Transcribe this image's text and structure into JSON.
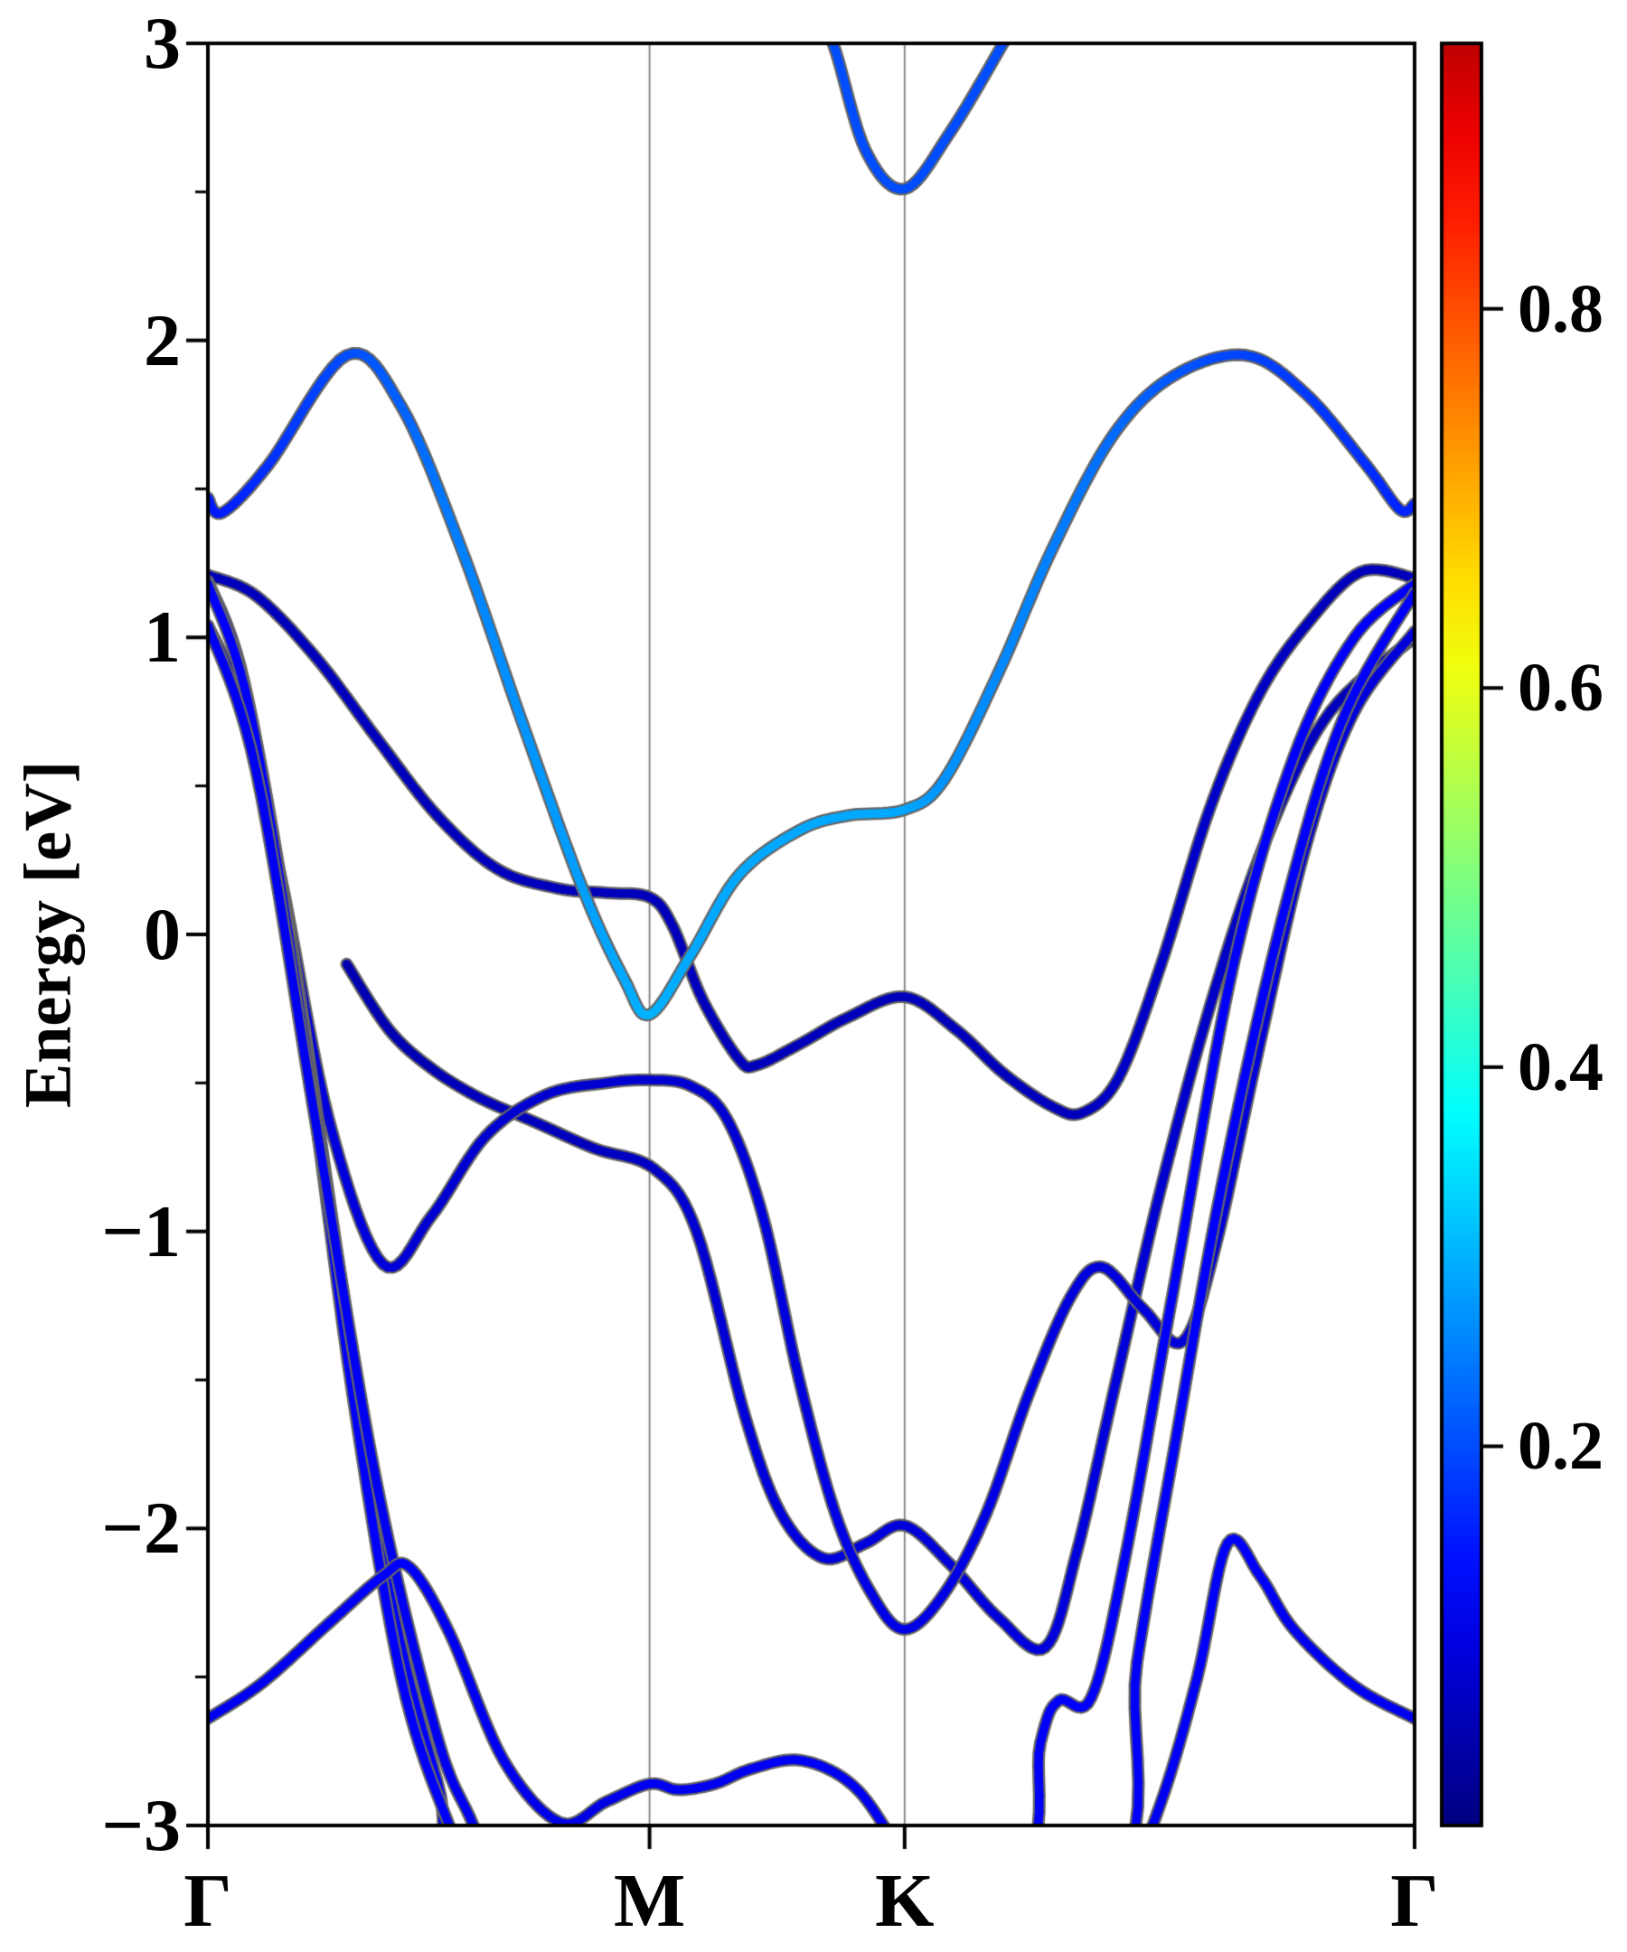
{
  "figure": {
    "background": "#ffffff",
    "ylabel": "Energy [eV]"
  },
  "chart_data": {
    "type": "line",
    "subtype": "band-structure",
    "title": "",
    "xlabel": "",
    "ylabel": "Energy [eV]",
    "x_tick_labels": [
      "Γ",
      "M",
      "K",
      "Γ"
    ],
    "x_tick_positions": [
      0,
      0.366,
      0.5774,
      1.0
    ],
    "ylim": [
      -3,
      3
    ],
    "y_major_ticks": [
      3,
      2,
      1,
      0,
      -1,
      -2,
      -3
    ],
    "y_tick_display": [
      "3",
      "2",
      "1",
      "0",
      "−1",
      "−2",
      "−3"
    ],
    "y_minor_step": 0.5,
    "grid": true,
    "grid_vertical_at": [
      0.366,
      0.5774
    ],
    "axis_color": "#000000",
    "grid_color": "#8a8a8a",
    "band_edge_color": "#666666",
    "legend": null,
    "colorbar": {
      "vmin": 0.0,
      "vmax": 0.94,
      "ticks": [
        0.8,
        0.6,
        0.4,
        0.2
      ],
      "tick_display": [
        "0.8",
        "0.6",
        "0.4",
        "0.2"
      ],
      "colormap": "jet",
      "colormap_stops": [
        [
          0.0,
          [
            0,
            0,
            127
          ]
        ],
        [
          0.125,
          [
            0,
            0,
            255
          ]
        ],
        [
          0.375,
          [
            0,
            255,
            255
          ]
        ],
        [
          0.625,
          [
            255,
            255,
            0
          ]
        ],
        [
          0.875,
          [
            255,
            0,
            0
          ]
        ],
        [
          1.0,
          [
            127,
            0,
            0
          ]
        ]
      ]
    },
    "bands": [
      {
        "name": "conduction-upper-parabola",
        "points": [
          [
            0.5,
            3.12,
            0.2
          ],
          [
            0.518,
            3.0,
            0.2
          ],
          [
            0.545,
            2.64,
            0.2
          ],
          [
            0.5774,
            2.51,
            0.2
          ],
          [
            0.615,
            2.7,
            0.2
          ],
          [
            0.659,
            3.0,
            0.2
          ],
          [
            0.675,
            3.12,
            0.2
          ]
        ]
      },
      {
        "name": "light-blue-band",
        "points": [
          [
            0.0,
            1.47,
            0.15
          ],
          [
            0.012,
            1.42,
            0.15
          ],
          [
            0.05,
            1.58,
            0.17
          ],
          [
            0.115,
            1.95,
            0.2
          ],
          [
            0.16,
            1.78,
            0.22
          ],
          [
            0.21,
            1.3,
            0.25
          ],
          [
            0.26,
            0.72,
            0.27
          ],
          [
            0.31,
            0.16,
            0.28
          ],
          [
            0.345,
            -0.15,
            0.29
          ],
          [
            0.366,
            -0.27,
            0.3
          ],
          [
            0.4,
            -0.07,
            0.29
          ],
          [
            0.44,
            0.2,
            0.29
          ],
          [
            0.49,
            0.35,
            0.29
          ],
          [
            0.53,
            0.4,
            0.29
          ],
          [
            0.5774,
            0.42,
            0.29
          ],
          [
            0.61,
            0.52,
            0.27
          ],
          [
            0.655,
            0.88,
            0.26
          ],
          [
            0.7,
            1.3,
            0.25
          ],
          [
            0.75,
            1.68,
            0.23
          ],
          [
            0.8,
            1.88,
            0.21
          ],
          [
            0.86,
            1.95,
            0.19
          ],
          [
            0.91,
            1.82,
            0.18
          ],
          [
            0.96,
            1.58,
            0.17
          ],
          [
            0.988,
            1.43,
            0.16
          ],
          [
            1.0,
            1.45,
            0.16
          ]
        ]
      },
      {
        "name": "navy-band-gentle",
        "points": [
          [
            0.0,
            1.21,
            0.06
          ],
          [
            0.04,
            1.14,
            0.06
          ],
          [
            0.09,
            0.93,
            0.06
          ],
          [
            0.14,
            0.66,
            0.06
          ],
          [
            0.19,
            0.4,
            0.06
          ],
          [
            0.24,
            0.22,
            0.06
          ],
          [
            0.29,
            0.155,
            0.06
          ],
          [
            0.33,
            0.14,
            0.06
          ],
          [
            0.366,
            0.125,
            0.06
          ],
          [
            0.385,
            0.03,
            0.06
          ],
          [
            0.41,
            -0.22,
            0.06
          ],
          [
            0.44,
            -0.42,
            0.06
          ],
          [
            0.455,
            -0.44,
            0.06
          ],
          [
            0.49,
            -0.37,
            0.06
          ],
          [
            0.53,
            -0.28,
            0.06
          ],
          [
            0.5774,
            -0.21,
            0.06
          ],
          [
            0.62,
            -0.32,
            0.06
          ],
          [
            0.66,
            -0.47,
            0.06
          ],
          [
            0.7,
            -0.58,
            0.06
          ],
          [
            0.725,
            -0.6,
            0.06
          ],
          [
            0.755,
            -0.48,
            0.07
          ],
          [
            0.79,
            -0.1,
            0.07
          ],
          [
            0.83,
            0.42,
            0.07
          ],
          [
            0.87,
            0.8,
            0.07
          ],
          [
            0.91,
            1.04,
            0.06
          ],
          [
            0.955,
            1.22,
            0.06
          ],
          [
            1.0,
            1.2,
            0.06
          ]
        ]
      },
      {
        "name": "navy-band-wiggle",
        "points": [
          [
            0.115,
            -0.1,
            0.05
          ],
          [
            0.15,
            -0.32,
            0.05
          ],
          [
            0.185,
            -0.45,
            0.05
          ],
          [
            0.225,
            -0.55,
            0.06
          ],
          [
            0.27,
            -0.63,
            0.06
          ],
          [
            0.32,
            -0.72,
            0.06
          ],
          [
            0.37,
            -0.79,
            0.07
          ],
          [
            0.405,
            -1.0,
            0.08
          ],
          [
            0.445,
            -1.62,
            0.09
          ],
          [
            0.475,
            -1.95,
            0.09
          ],
          [
            0.51,
            -2.1,
            0.09
          ],
          [
            0.545,
            -2.05,
            0.09
          ],
          [
            0.5774,
            -1.99,
            0.09
          ],
          [
            0.615,
            -2.12,
            0.09
          ],
          [
            0.655,
            -2.3,
            0.09
          ],
          [
            0.694,
            -2.4,
            0.09
          ],
          [
            0.72,
            -2.08,
            0.09
          ],
          [
            0.75,
            -1.55,
            0.09
          ],
          [
            0.79,
            -0.85,
            0.08
          ],
          [
            0.835,
            -0.18,
            0.07
          ],
          [
            0.88,
            0.35,
            0.07
          ],
          [
            0.93,
            0.75,
            0.06
          ],
          [
            1.0,
            1.0,
            0.06
          ]
        ]
      },
      {
        "name": "band-with-deep-k-valley",
        "points": [
          [
            0.0,
            1.04,
            0.09
          ],
          [
            0.025,
            0.8,
            0.09
          ],
          [
            0.06,
            0.2,
            0.09
          ],
          [
            0.1,
            -0.62,
            0.09
          ],
          [
            0.145,
            -1.11,
            0.09
          ],
          [
            0.185,
            -0.95,
            0.08
          ],
          [
            0.23,
            -0.68,
            0.08
          ],
          [
            0.28,
            -0.54,
            0.08
          ],
          [
            0.33,
            -0.5,
            0.08
          ],
          [
            0.366,
            -0.49,
            0.08
          ],
          [
            0.4,
            -0.51,
            0.08
          ],
          [
            0.43,
            -0.62,
            0.08
          ],
          [
            0.46,
            -0.95,
            0.09
          ],
          [
            0.49,
            -1.5,
            0.09
          ],
          [
            0.52,
            -1.95,
            0.1
          ],
          [
            0.55,
            -2.22,
            0.1
          ],
          [
            0.5774,
            -2.34,
            0.1
          ],
          [
            0.61,
            -2.22,
            0.1
          ],
          [
            0.645,
            -1.95,
            0.1
          ],
          [
            0.68,
            -1.55,
            0.1
          ],
          [
            0.715,
            -1.22,
            0.09
          ],
          [
            0.741,
            -1.12,
            0.09
          ],
          [
            0.775,
            -1.26,
            0.09
          ],
          [
            0.808,
            -1.37,
            0.09
          ],
          [
            0.835,
            -1.05,
            0.09
          ],
          [
            0.87,
            -0.4,
            0.09
          ],
          [
            0.91,
            0.3,
            0.09
          ],
          [
            0.95,
            0.75,
            0.09
          ],
          [
            1.0,
            1.02,
            0.09
          ]
        ]
      },
      {
        "name": "steep-band-1",
        "points": [
          [
            0.0,
            1.19,
            0.12
          ],
          [
            0.03,
            0.85,
            0.12
          ],
          [
            0.07,
            -0.05,
            0.12
          ],
          [
            0.11,
            -1.15,
            0.12
          ],
          [
            0.15,
            -2.2,
            0.12
          ],
          [
            0.19,
            -2.85,
            0.12
          ],
          [
            0.225,
            -3.25,
            0.12
          ],
          [
            0.45,
            -3.85,
            0.12
          ],
          [
            0.663,
            -3.25,
            0.12
          ],
          [
            0.69,
            -2.72,
            0.12
          ],
          [
            0.705,
            -2.58,
            0.12
          ],
          [
            0.732,
            -2.57,
            0.12
          ],
          [
            0.76,
            -2.1,
            0.12
          ],
          [
            0.8,
            -1.2,
            0.12
          ],
          [
            0.85,
            -0.1,
            0.12
          ],
          [
            0.9,
            0.6,
            0.12
          ],
          [
            0.95,
            1.0,
            0.12
          ],
          [
            1.0,
            1.18,
            0.12
          ]
        ]
      },
      {
        "name": "steep-band-2",
        "points": [
          [
            0.0,
            1.18,
            0.12
          ],
          [
            0.035,
            0.75,
            0.12
          ],
          [
            0.08,
            -0.35,
            0.12
          ],
          [
            0.12,
            -1.55,
            0.12
          ],
          [
            0.16,
            -2.5,
            0.12
          ],
          [
            0.2,
            -3.0,
            0.12
          ],
          [
            0.235,
            -3.3,
            0.12
          ],
          [
            0.47,
            -3.85,
            0.12
          ],
          [
            0.742,
            -3.25,
            0.12
          ],
          [
            0.77,
            -2.45,
            0.12
          ],
          [
            0.8,
            -1.75,
            0.12
          ],
          [
            0.84,
            -0.85,
            0.12
          ],
          [
            0.89,
            0.05,
            0.12
          ],
          [
            0.94,
            0.72,
            0.12
          ],
          [
            1.0,
            1.15,
            0.12
          ]
        ]
      },
      {
        "name": "steep-band-3",
        "points": [
          [
            0.0,
            1.04,
            0.11
          ],
          [
            0.04,
            0.55,
            0.11
          ],
          [
            0.09,
            -0.65,
            0.11
          ],
          [
            0.14,
            -1.85,
            0.11
          ],
          [
            0.19,
            -2.7,
            0.11
          ],
          [
            0.22,
            -3.0,
            0.11
          ],
          [
            0.248,
            -3.3,
            0.11
          ],
          [
            0.32,
            -3.85,
            0.11
          ]
        ]
      },
      {
        "name": "bottom-band",
        "points": [
          [
            0.0,
            -2.64,
            0.11
          ],
          [
            0.045,
            -2.52,
            0.11
          ],
          [
            0.1,
            -2.32,
            0.11
          ],
          [
            0.145,
            -2.16,
            0.12
          ],
          [
            0.167,
            -2.13,
            0.12
          ],
          [
            0.2,
            -2.35,
            0.11
          ],
          [
            0.245,
            -2.78,
            0.11
          ],
          [
            0.292,
            -2.99,
            0.1
          ],
          [
            0.33,
            -2.92,
            0.1
          ],
          [
            0.366,
            -2.86,
            0.11
          ],
          [
            0.39,
            -2.88,
            0.11
          ],
          [
            0.42,
            -2.86,
            0.11
          ],
          [
            0.45,
            -2.81,
            0.11
          ],
          [
            0.49,
            -2.78,
            0.12
          ],
          [
            0.53,
            -2.85,
            0.11
          ],
          [
            0.56,
            -3.0,
            0.11
          ],
          [
            0.6,
            -3.3,
            0.11
          ],
          [
            0.7,
            -3.5,
            0.11
          ],
          [
            0.755,
            -3.25,
            0.11
          ],
          [
            0.79,
            -2.92,
            0.11
          ],
          [
            0.82,
            -2.5,
            0.12
          ],
          [
            0.845,
            -2.05,
            0.12
          ],
          [
            0.872,
            -2.16,
            0.12
          ],
          [
            0.9,
            -2.34,
            0.11
          ],
          [
            0.95,
            -2.53,
            0.11
          ],
          [
            1.0,
            -2.64,
            0.11
          ]
        ]
      }
    ]
  }
}
